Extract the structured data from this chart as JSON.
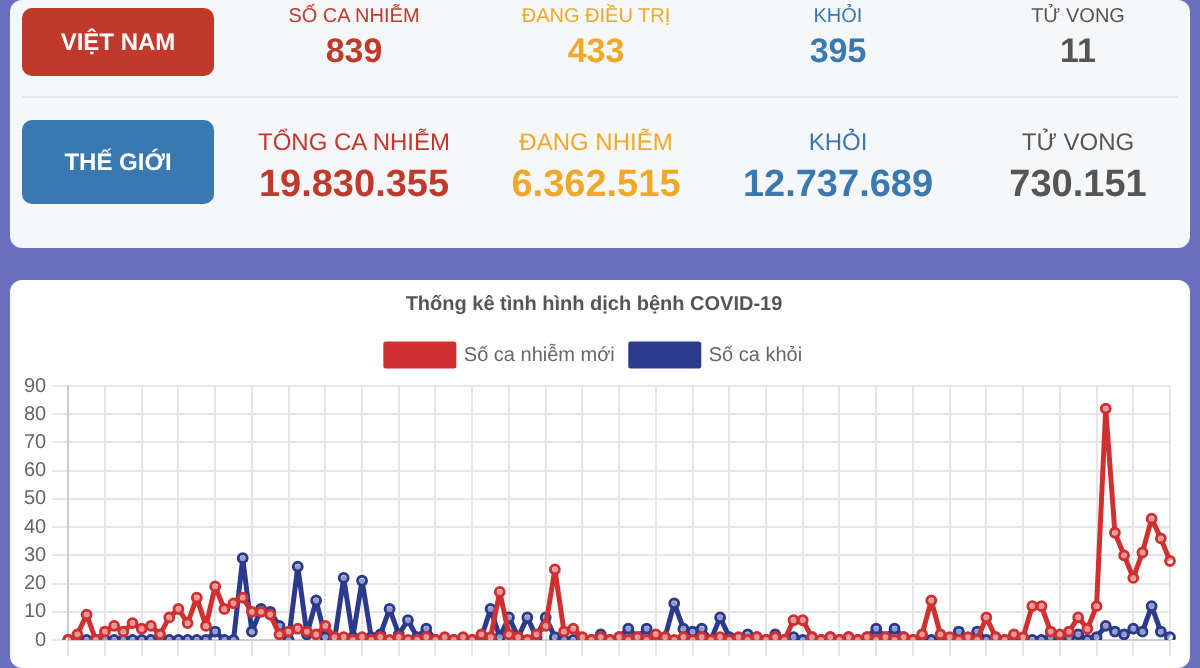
{
  "chart_data": [
    {
      "type": "other",
      "y_categories": [
        "VIỆT NAM",
        "THẾ GIỚI"
      ],
      "annotations": [
        "SỐ CA NHIỄM",
        "ĐANG ĐIỀU TRỊ",
        "KHỎI",
        "TỬ VONG"
      ],
      "categories": [
        "TỔNG CA NHIỄM",
        "ĐANG NHIỄM",
        "KHỎI",
        "TỬ VONG"
      ],
      "cell_labels": [
        [
          "839",
          "433",
          "395",
          "11"
        ],
        [
          "19.830.355",
          "6.362.515",
          "12.737.689",
          "730.151"
        ]
      ]
    },
    {
      "type": "line",
      "title": "Thống kê tình hình dịch bệnh COVID-19",
      "legend": "top",
      "grid": true,
      "marker": "circle",
      "tick_labels": "y",
      "ylim": [
        0,
        90
      ],
      "yticks": [
        0,
        10,
        20,
        30,
        40,
        50,
        60,
        70,
        80,
        90
      ],
      "categories": [
        null,
        null,
        null,
        null,
        null,
        null,
        null,
        null,
        null,
        null,
        null,
        null,
        null,
        null,
        null,
        null,
        null,
        null,
        null,
        null,
        null,
        null,
        null,
        null,
        null,
        null,
        null,
        null,
        null,
        null,
        null,
        null,
        null,
        null,
        null,
        null,
        null,
        null,
        null,
        null,
        null,
        null,
        null,
        null,
        null,
        null,
        null,
        null,
        null,
        null,
        null,
        null,
        null,
        null,
        null,
        null,
        null,
        null,
        null,
        null,
        null,
        null,
        null,
        null,
        null,
        null,
        null,
        null,
        null,
        null,
        null,
        null,
        null,
        null,
        null,
        null,
        null,
        null,
        null,
        null,
        null,
        null,
        null,
        null,
        null,
        null,
        null,
        null,
        null,
        null,
        null,
        null,
        null,
        null,
        null,
        null,
        null,
        null,
        null,
        null,
        null,
        null,
        null,
        null,
        null,
        null,
        null,
        null,
        null,
        null,
        null,
        null,
        null,
        null,
        null,
        null,
        null,
        null,
        null,
        null,
        null
      ],
      "series": [
        {
          "name": "Số ca nhiễm mới",
          "color": "#d03030",
          "values": [
            0,
            2,
            9,
            0,
            3,
            5,
            3,
            6,
            4,
            5,
            2,
            8,
            11,
            6,
            15,
            5,
            19,
            11,
            13,
            15,
            10,
            10,
            9,
            2,
            3,
            4,
            3,
            2,
            5,
            1,
            1,
            0,
            1,
            0,
            1,
            0,
            1,
            0,
            0,
            1,
            0,
            1,
            0,
            1,
            0,
            2,
            1,
            17,
            2,
            1,
            0,
            2,
            5,
            25,
            3,
            4,
            1,
            0,
            1,
            0,
            1,
            0,
            1,
            0,
            2,
            1,
            0,
            1,
            0,
            1,
            0,
            1,
            0,
            1,
            0,
            1,
            0,
            1,
            0,
            7,
            7,
            1,
            0,
            1,
            0,
            1,
            0,
            1,
            0,
            1,
            0,
            1,
            0,
            2,
            14,
            2,
            1,
            0,
            1,
            0,
            8,
            1,
            0,
            2,
            1,
            12,
            12,
            3,
            2,
            3,
            8,
            4,
            12,
            82,
            38,
            30,
            22,
            31,
            43,
            36,
            28
          ]
        },
        {
          "name": "Số ca khỏi",
          "color": "#2b3a8c",
          "values": [
            0,
            0,
            0,
            0,
            0,
            0,
            0,
            0,
            0,
            0,
            0,
            0,
            0,
            0,
            0,
            0,
            3,
            0,
            0,
            29,
            3,
            11,
            10,
            5,
            0,
            26,
            2,
            14,
            1,
            0,
            22,
            1,
            21,
            1,
            2,
            11,
            2,
            7,
            1,
            4,
            0,
            0,
            0,
            0,
            0,
            1,
            11,
            1,
            8,
            1,
            8,
            1,
            8,
            1,
            0,
            0,
            0,
            0,
            2,
            0,
            1,
            4,
            1,
            4,
            0,
            1,
            13,
            4,
            3,
            4,
            0,
            8,
            1,
            0,
            2,
            1,
            0,
            2,
            0,
            1,
            0,
            1,
            0,
            1,
            0,
            1,
            0,
            1,
            4,
            1,
            4,
            1,
            0,
            1,
            0,
            1,
            0,
            3,
            0,
            3,
            0,
            1,
            0,
            1,
            0,
            0,
            0,
            1,
            0,
            1,
            2,
            0,
            1,
            5,
            3,
            2,
            4,
            3,
            12,
            3,
            1
          ]
        }
      ]
    }
  ]
}
